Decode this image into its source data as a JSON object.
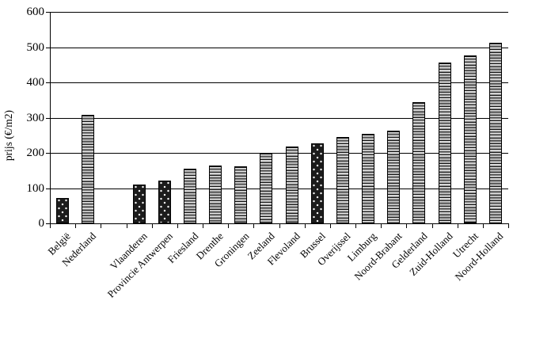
{
  "chart_data": {
    "type": "bar",
    "title": "",
    "xlabel": "",
    "ylabel": "prijs (€/m2)",
    "ylim": [
      0,
      600
    ],
    "ytick_interval": 100,
    "yticks": [
      0,
      100,
      200,
      300,
      400,
      500,
      600
    ],
    "grid": true,
    "legend": false,
    "categories": [
      "België",
      "Nederland",
      "",
      "Vlaanderen",
      "Provincie Antwerpen",
      "Friesland",
      "Drenthe",
      "Groningen",
      "Zeeland",
      "Flevoland",
      "Brussel",
      "Overijssel",
      "Limburg",
      "Noord-Brabant",
      "Gelderland",
      "Zuid-Holland",
      "Utrecht",
      "Noord-Holland"
    ],
    "values": [
      72,
      307,
      null,
      111,
      121,
      155,
      163,
      161,
      201,
      219,
      226,
      245,
      255,
      263,
      344,
      457,
      476,
      513
    ],
    "patterns": [
      "dots",
      "stripes",
      null,
      "dots",
      "dots",
      "stripes",
      "stripes",
      "stripes",
      "stripes",
      "stripes",
      "dots",
      "stripes",
      "stripes",
      "stripes",
      "stripes",
      "stripes",
      "stripes",
      "stripes"
    ],
    "pattern_legend": {
      "dots": "dark bar with white dots (Belgian regions)",
      "stripes": "light bar with horizontal stripes (Dutch regions)"
    },
    "colors": {
      "background": "#ffffff",
      "axis": "#000000",
      "text": "#000000",
      "bar_border": "#000000",
      "dots_bar_fill": "#1c1c1c",
      "dots_dot": "#ffffff",
      "stripes_light": "#ededed",
      "stripes_dark": "#8f8f8f",
      "stripes_line": "#111111"
    }
  }
}
